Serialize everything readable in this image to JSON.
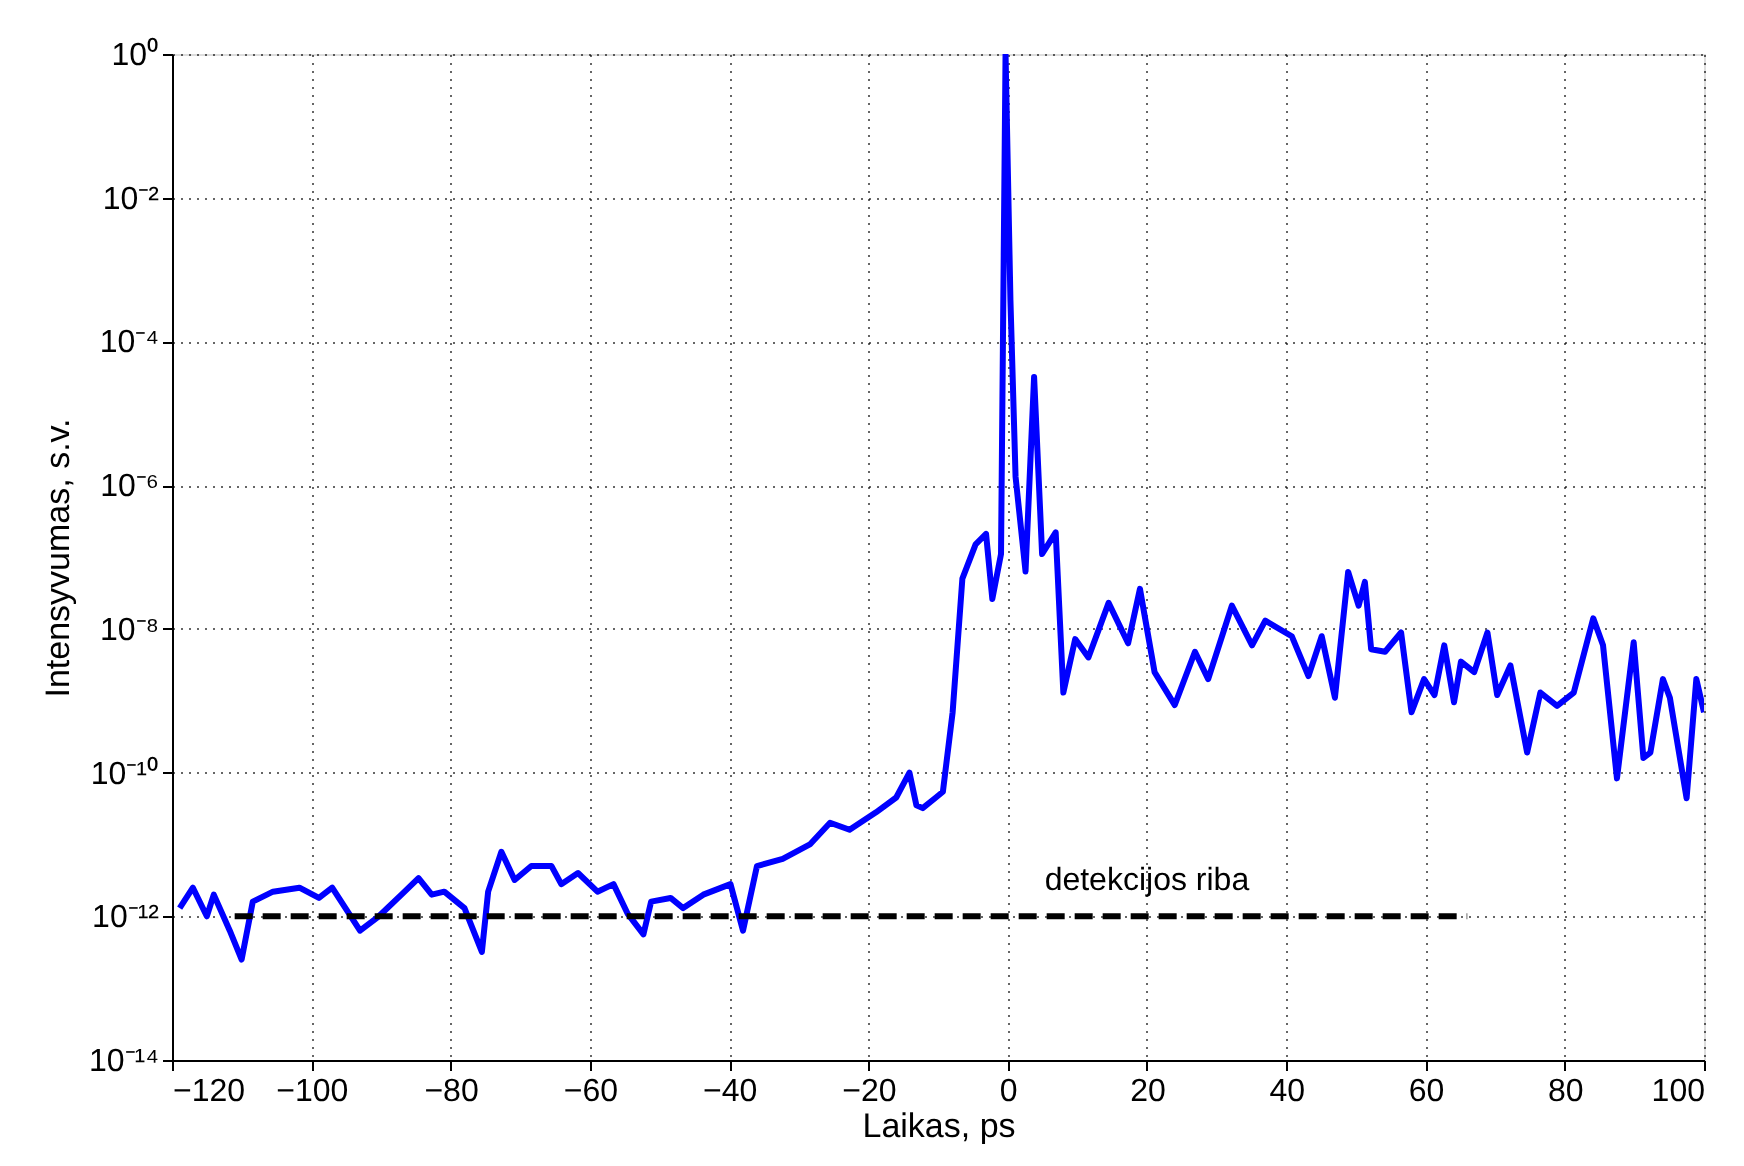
{
  "chart_data": {
    "type": "line",
    "xlabel": "Laikas, ps",
    "ylabel": "Intensyvumas, s.v.",
    "log": "y",
    "grid": true,
    "xlim": [
      -120,
      100
    ],
    "xticks": [
      -120,
      -100,
      -80,
      -60,
      -40,
      -20,
      0,
      20,
      40,
      60,
      80,
      100
    ],
    "ylim": [
      1e-14,
      1
    ],
    "yticks": [
      {
        "value": 1e-14,
        "label": "10⁻¹⁴"
      },
      {
        "value": 1e-12,
        "label": "10⁻¹²"
      },
      {
        "value": 1e-10,
        "label": "10⁻¹⁰"
      },
      {
        "value": 1e-08,
        "label": "10⁻⁸"
      },
      {
        "value": 1e-06,
        "label": "10⁻⁶"
      },
      {
        "value": 0.0001,
        "label": "10⁻⁴"
      },
      {
        "value": 0.01,
        "label": "10⁻²"
      },
      {
        "value": 1,
        "label": "10⁰"
      }
    ],
    "annotations": [
      {
        "text": "detekcijos riba",
        "x": 20,
        "y": 1e-12
      }
    ],
    "series": [
      {
        "color": "#0000ff",
        "line_style": "solid",
        "x": [
          -118.9,
          -117,
          -115,
          -114,
          -111.7,
          -110,
          -108.4,
          -105.5,
          -101.7,
          -98.9,
          -97,
          -94.6,
          -93,
          -90.3,
          -86.6,
          -84.6,
          -82.7,
          -80.9,
          -78,
          -75.5,
          -74.6,
          -72.7,
          -70.8,
          -68.4,
          -65.5,
          -64.1,
          -61.7,
          -58.9,
          -56.6,
          -54.6,
          -52.3,
          -51.2,
          -48.4,
          -46.6,
          -43.7,
          -39.8,
          -38,
          -36,
          -32.3,
          -28.4,
          -25.5,
          -22.7,
          -18.9,
          -16,
          -14.1,
          -13.1,
          -12.2,
          -10.3,
          -9.3,
          -7.9,
          -6.5,
          -4.6,
          -3.1,
          -2.2,
          -0.95,
          -0.3,
          0.4,
          1.14,
          2.57,
          3.8,
          4.95,
          6.9,
          8,
          9.7,
          11.6,
          14.5,
          17.3,
          19,
          21.1,
          24,
          26.9,
          28.8,
          32.2,
          35.1,
          37,
          40.8,
          43.2,
          45.1,
          47,
          48.9,
          50.4,
          51.3,
          52.2,
          54.2,
          56.5,
          58,
          59.8,
          61.3,
          62.7,
          64.1,
          65.1,
          67,
          68.9,
          70.3,
          72.2,
          74.6,
          76.5,
          78.9,
          81.3,
          84.1,
          85.5,
          87.5,
          89.9,
          91.3,
          92.3,
          94.1,
          95.1,
          97.5,
          98.9,
          100
        ],
        "values": [
          1.3e-12,
          2.5e-12,
          1e-12,
          2e-12,
          6.3e-13,
          2.5e-13,
          1.6e-12,
          2.2e-12,
          2.5e-12,
          1.8e-12,
          2.5e-12,
          1.1e-12,
          6.3e-13,
          1e-12,
          2.2e-12,
          3.4e-12,
          2e-12,
          2.2e-12,
          1.3e-12,
          3.2e-13,
          2.2e-12,
          7.9e-12,
          3.2e-12,
          5e-12,
          5e-12,
          2.8e-12,
          4e-12,
          2.2e-12,
          2.8e-12,
          1.1e-12,
          5.6e-13,
          1.6e-12,
          1.8e-12,
          1.3e-12,
          2e-12,
          2.8e-12,
          6.3e-13,
          5e-12,
          6.3e-12,
          1e-11,
          2e-11,
          1.6e-11,
          2.8e-11,
          4.5e-11,
          1e-10,
          3.5e-11,
          3.2e-11,
          4.5e-11,
          5.4e-11,
          6.9e-10,
          5e-08,
          1.5e-07,
          2.1e-07,
          2.6e-08,
          1.1e-07,
          1,
          0.00038,
          1.3e-06,
          6.3e-08,
          3.2e-05,
          1.1e-07,
          2.2e-07,
          1.3e-09,
          7.2e-09,
          4e-09,
          2.3e-08,
          6.3e-09,
          3.6e-08,
          2.5e-09,
          8.7e-10,
          4.8e-09,
          2e-09,
          2.1e-08,
          5.9e-09,
          1.3e-08,
          7.9e-09,
          2.2e-09,
          7.9e-09,
          1.1e-09,
          6.2e-08,
          2.1e-08,
          4.5e-08,
          5.2e-09,
          4.8e-09,
          8.9e-09,
          6.9e-10,
          2e-09,
          1.2e-09,
          5.9e-09,
          9.5e-10,
          3.5e-09,
          2.5e-09,
          8.9e-09,
          1.2e-09,
          3.1e-09,
          1.9e-10,
          1.3e-09,
          8.5e-10,
          1.3e-09,
          1.4e-08,
          5.9e-09,
          8.3e-11,
          6.5e-09,
          1.6e-10,
          1.9e-10,
          2e-09,
          1.1e-09,
          4.4e-11,
          2e-09,
          6.9e-10
        ]
      },
      {
        "color": "#000000",
        "line_style": "dashed",
        "x": [
          -111,
          66
        ],
        "values": [
          1e-12,
          1e-12
        ]
      }
    ]
  }
}
